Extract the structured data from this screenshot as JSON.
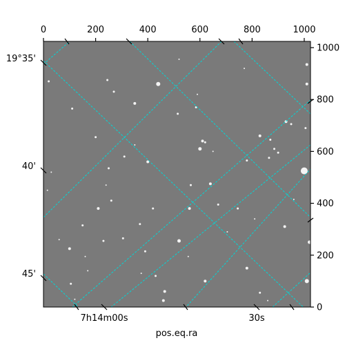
{
  "chart_data": {
    "type": "scatter",
    "title": "",
    "xlabel": "pos.eq.ra",
    "ylabel": "",
    "pixel_axes": {
      "bottom_ticks": [
        "0",
        "200",
        "400",
        "600",
        "800",
        "1000"
      ],
      "bottom_values": [
        0,
        200,
        400,
        600,
        800,
        1000
      ],
      "right_ticks": [
        "0",
        "200",
        "400",
        "600",
        "800",
        "1000"
      ],
      "right_values": [
        0,
        200,
        400,
        600,
        800,
        1000
      ],
      "xlim": [
        0,
        1024
      ],
      "ylim": [
        0,
        1024
      ]
    },
    "world_axes": {
      "ra_ticks": [
        "7h14m00s",
        "30s"
      ],
      "dec_ticks": [
        "19°35'",
        "40'",
        "45'"
      ]
    },
    "grid": true,
    "grid_color": "#00d8d8",
    "image_background": "#7a7a7a",
    "stars": [
      [
        440,
        860,
        3
      ],
      [
        1010,
        935,
        2
      ],
      [
        1010,
        860,
        2
      ],
      [
        350,
        785,
        2
      ],
      [
        245,
        875,
        1.5
      ],
      [
        270,
        830,
        1.5
      ],
      [
        585,
        770,
        1.5
      ],
      [
        110,
        765,
        1.5
      ],
      [
        400,
        560,
        2
      ],
      [
        610,
        640,
        2
      ],
      [
        620,
        635,
        1.5
      ],
      [
        600,
        610,
        2.5
      ],
      [
        830,
        660,
        2
      ],
      [
        900,
        595,
        1.5
      ],
      [
        865,
        575,
        1.5
      ],
      [
        885,
        610,
        1.5
      ],
      [
        780,
        565,
        1.5
      ],
      [
        930,
        715,
        2
      ],
      [
        950,
        705,
        1.5
      ],
      [
        1005,
        690,
        1.5
      ],
      [
        250,
        535,
        1.5
      ],
      [
        200,
        655,
        1.5
      ],
      [
        1000,
        525,
        5
      ],
      [
        640,
        475,
        2
      ],
      [
        565,
        470,
        1.5
      ],
      [
        560,
        380,
        2
      ],
      [
        210,
        380,
        2
      ],
      [
        420,
        380,
        1.5
      ],
      [
        370,
        320,
        1.5
      ],
      [
        1020,
        250,
        2.5
      ],
      [
        520,
        255,
        2.5
      ],
      [
        100,
        225,
        2
      ],
      [
        305,
        265,
        1.5
      ],
      [
        925,
        310,
        2
      ],
      [
        1010,
        100,
        3
      ],
      [
        620,
        100,
        2
      ],
      [
        430,
        120,
        1.5
      ],
      [
        465,
        60,
        2
      ],
      [
        460,
        25,
        2
      ],
      [
        390,
        215,
        1.5
      ],
      [
        780,
        150,
        2
      ],
      [
        830,
        55,
        1.5
      ],
      [
        105,
        90,
        1.5
      ],
      [
        260,
        410,
        1.5
      ],
      [
        870,
        645,
        1.5
      ],
      [
        670,
        395,
        1.5
      ],
      [
        745,
        380,
        1.5
      ],
      [
        230,
        255,
        1.5
      ],
      [
        150,
        315,
        1.5
      ],
      [
        515,
        745,
        1.5
      ],
      [
        20,
        870,
        1.5
      ],
      [
        15,
        450,
        1
      ],
      [
        60,
        260,
        1
      ],
      [
        120,
        30,
        1
      ],
      [
        310,
        580,
        1.5
      ],
      [
        705,
        290,
        1
      ],
      [
        375,
        130,
        1
      ],
      [
        160,
        195,
        1
      ],
      [
        590,
        820,
        1
      ],
      [
        770,
        920,
        1
      ],
      [
        555,
        195,
        1
      ],
      [
        650,
        600,
        1
      ],
      [
        520,
        955,
        1
      ],
      [
        30,
        520,
        1
      ],
      [
        240,
        470,
        1
      ],
      [
        350,
        625,
        1
      ],
      [
        810,
        340,
        1
      ],
      [
        960,
        415,
        1
      ],
      [
        170,
        140,
        1
      ],
      [
        860,
        25,
        1
      ]
    ]
  }
}
